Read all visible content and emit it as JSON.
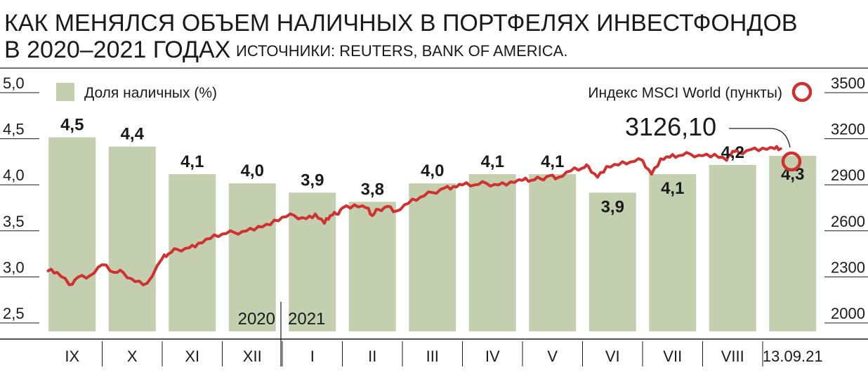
{
  "title_line1": "КАК МЕНЯЛСЯ ОБЪЕМ НАЛИЧНЫХ В ПОРТФЕЛЯХ ИНВЕСТФОНДОВ",
  "title_line2": "В 2020–2021 ГОДАХ",
  "source": "ИСТОЧНИКИ: REUTERS, BANK OF AMERICA.",
  "colors": {
    "bar": "#c3cfaf",
    "line": "#d03030",
    "axis": "#1a1a1a"
  },
  "chart_data": {
    "type": "bar",
    "categories": [
      "IX",
      "X",
      "XI",
      "XII",
      "I",
      "II",
      "III",
      "IV",
      "V",
      "VI",
      "VII",
      "VIII",
      "13.09.21"
    ],
    "series": [
      {
        "name": "Доля наличных (%)",
        "axis": "left",
        "type": "bar",
        "values": [
          4.5,
          4.4,
          4.1,
          4.0,
          3.9,
          3.8,
          4.0,
          4.1,
          4.1,
          3.9,
          4.1,
          4.2,
          4.3
        ]
      },
      {
        "name": "Индекс MSCI World (пункты)",
        "axis": "right",
        "type": "line",
        "x": [
          0.1,
          0.25,
          0.45,
          0.6,
          0.8,
          1.0,
          1.2,
          1.35,
          1.55,
          1.75,
          2.0,
          2.1,
          2.25,
          2.45,
          2.6,
          2.8,
          3.0,
          3.2,
          3.4,
          3.6,
          3.8,
          4.0,
          4.2,
          4.4,
          4.55,
          4.7,
          4.8,
          4.9,
          5.0,
          5.2,
          5.4,
          5.5,
          5.6,
          5.75,
          5.9,
          6.1,
          6.3,
          6.5,
          6.7,
          6.85,
          7.0,
          7.2,
          7.4,
          7.6,
          7.8,
          8.0,
          8.15,
          8.3,
          8.45,
          8.6,
          8.8,
          9.0,
          9.1,
          9.25,
          9.4,
          9.6,
          9.8,
          10.0,
          10.15,
          10.3,
          10.45,
          10.6,
          10.8,
          11.0,
          11.2,
          11.4,
          11.5,
          11.6,
          11.8,
          12.0,
          12.2,
          12.3
        ],
        "values": [
          2330,
          2320,
          2240,
          2290,
          2300,
          2370,
          2320,
          2320,
          2260,
          2250,
          2410,
          2440,
          2470,
          2480,
          2510,
          2540,
          2570,
          2580,
          2590,
          2620,
          2630,
          2680,
          2690,
          2670,
          2700,
          2640,
          2690,
          2700,
          2740,
          2760,
          2740,
          2690,
          2730,
          2750,
          2720,
          2770,
          2810,
          2840,
          2870,
          2880,
          2890,
          2890,
          2900,
          2890,
          2910,
          2920,
          2920,
          2930,
          2950,
          2940,
          2980,
          3000,
          3010,
          2940,
          3010,
          3020,
          3040,
          3050,
          2960,
          3060,
          3070,
          3080,
          3090,
          3080,
          3090,
          3050,
          3110,
          3100,
          3120,
          3130,
          3126.1,
          3126.1
        ]
      }
    ],
    "year_labels": [
      "2020",
      "2021"
    ],
    "left_axis": {
      "ticks": [
        "5,0",
        "4,5",
        "4,0",
        "3,5",
        "3,0",
        "2,5"
      ],
      "range": [
        2.5,
        5.0
      ]
    },
    "right_axis": {
      "ticks": [
        "3500",
        "3200",
        "2900",
        "2600",
        "2300",
        "2000"
      ],
      "range": [
        2000,
        3500
      ]
    },
    "bar_labels": [
      "4,5",
      "4,4",
      "4,1",
      "4,0",
      "3,9",
      "3,8",
      "4,0",
      "4,1",
      "4,1",
      "3,9",
      "4,1",
      "4,2",
      "4,3"
    ],
    "legend_bar": "Доля наличных (%)",
    "legend_line": "Индекс MSCI World (пункты)",
    "callout": "3126,10",
    "grid": false
  }
}
